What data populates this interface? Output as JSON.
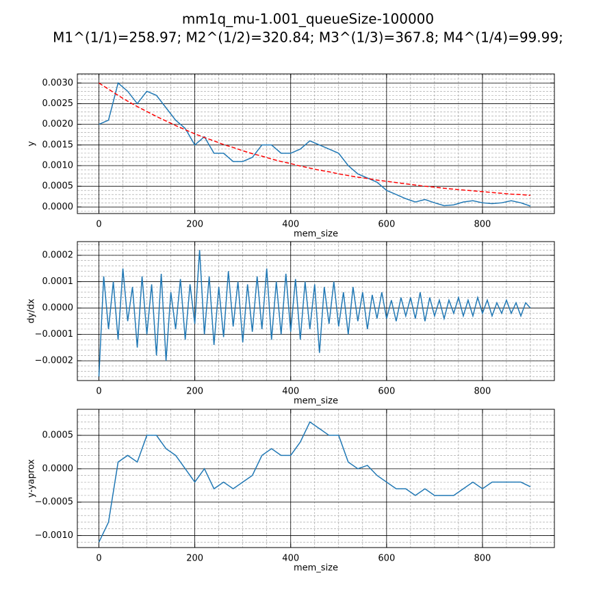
{
  "title": [
    "mm1q_mu-1.001_queueSize-100000",
    "M1^(1/1)=258.97; M2^(1/2)=320.84; M3^(1/3)=367.8; M4^(1/4)=99.99;"
  ],
  "chart_data": [
    {
      "type": "line",
      "xlabel": "mem_size",
      "ylabel": "y",
      "grid": true,
      "xlim": [
        -45,
        950
      ],
      "xticks": [
        0,
        200,
        400,
        600,
        800
      ],
      "ylim": [
        -0.00016,
        0.00322
      ],
      "yticks": [
        {
          "value": 0,
          "label": "0.0000"
        },
        {
          "value": 0.0005,
          "label": "0.0005"
        },
        {
          "value": 0.001,
          "label": "0.0010"
        },
        {
          "value": 0.0015,
          "label": "0.0015"
        },
        {
          "value": 0.002,
          "label": "0.0020"
        },
        {
          "value": 0.0025,
          "label": "0.0025"
        },
        {
          "value": 0.003,
          "label": "0.0030"
        }
      ],
      "x": [
        0,
        20,
        40,
        60,
        80,
        100,
        120,
        140,
        160,
        180,
        200,
        220,
        240,
        260,
        280,
        300,
        320,
        340,
        360,
        380,
        400,
        420,
        440,
        460,
        480,
        500,
        520,
        540,
        560,
        580,
        600,
        620,
        640,
        660,
        680,
        700,
        720,
        740,
        760,
        780,
        800,
        820,
        840,
        860,
        880,
        900
      ],
      "series": [
        {
          "color": "#1f77b4",
          "linestyle": "solid",
          "values": [
            0.002,
            0.0021,
            0.003,
            0.0028,
            0.0025,
            0.0028,
            0.0027,
            0.0024,
            0.0021,
            0.0019,
            0.0015,
            0.0017,
            0.0013,
            0.0013,
            0.0011,
            0.0011,
            0.0012,
            0.0015,
            0.0015,
            0.0013,
            0.0013,
            0.0014,
            0.0016,
            0.0015,
            0.0014,
            0.0013,
            0.001,
            0.0008,
            0.0007,
            0.0006,
            0.0004,
            0.0003,
            0.0002,
            0.00012,
            0.00018,
            0.0001,
            3e-05,
            5e-05,
            0.00012,
            0.00015,
            0.0001,
            8e-05,
            0.0001,
            0.00015,
            0.0001,
            2e-05
          ]
        },
        {
          "color": "#ff0000",
          "linestyle": "dashed",
          "values": [
            0.003,
            0.00285,
            0.0027,
            0.00256,
            0.00243,
            0.00231,
            0.00219,
            0.00208,
            0.00197,
            0.00187,
            0.00177,
            0.00168,
            0.0016,
            0.00151,
            0.00144,
            0.00136,
            0.00129,
            0.00123,
            0.00116,
            0.0011,
            0.00105,
            0.00099,
            0.00094,
            0.00089,
            0.00085,
            0.0008,
            0.00076,
            0.00072,
            0.00069,
            0.00065,
            0.00062,
            0.00059,
            0.00056,
            0.00053,
            0.0005,
            0.00048,
            0.00045,
            0.00043,
            0.00041,
            0.00039,
            0.00037,
            0.00035,
            0.00033,
            0.00031,
            0.0003,
            0.00028
          ]
        }
      ]
    },
    {
      "type": "line",
      "xlabel": "mem_size",
      "ylabel": "dy/dx",
      "grid": true,
      "xlim": [
        -45,
        950
      ],
      "xticks": [
        0,
        200,
        400,
        600,
        800
      ],
      "ylim": [
        -0.000275,
        0.000252
      ],
      "yticks": [
        {
          "value": -0.0002,
          "label": "−0.0002"
        },
        {
          "value": -0.0001,
          "label": "−0.0001"
        },
        {
          "value": 0,
          "label": "0.0000"
        },
        {
          "value": 0.0001,
          "label": "0.0001"
        },
        {
          "value": 0.0002,
          "label": "0.0002"
        }
      ],
      "x": [
        0,
        10,
        20,
        30,
        40,
        50,
        60,
        70,
        80,
        90,
        100,
        110,
        120,
        130,
        140,
        150,
        160,
        170,
        180,
        190,
        200,
        210,
        220,
        230,
        240,
        250,
        260,
        270,
        280,
        290,
        300,
        310,
        320,
        330,
        340,
        350,
        360,
        370,
        380,
        390,
        400,
        410,
        420,
        430,
        440,
        450,
        460,
        470,
        480,
        490,
        500,
        510,
        520,
        530,
        540,
        550,
        560,
        570,
        580,
        590,
        600,
        610,
        620,
        630,
        640,
        650,
        660,
        670,
        680,
        690,
        700,
        710,
        720,
        730,
        740,
        750,
        760,
        770,
        780,
        790,
        800,
        810,
        820,
        830,
        840,
        850,
        860,
        870,
        880,
        890,
        900
      ],
      "series": [
        {
          "color": "#1f77b4",
          "linestyle": "solid",
          "values": [
            -0.00026,
            0.00012,
            -8e-05,
            0.0001,
            -0.00012,
            0.00015,
            -5e-05,
            8e-05,
            -0.00015,
            0.00012,
            -0.0001,
            9e-05,
            -0.00018,
            0.00013,
            -0.0002,
            6e-05,
            -8e-05,
            0.00011,
            -0.00012,
            9e-05,
            -6e-05,
            0.00022,
            -0.0001,
            0.00012,
            -0.00014,
            8e-05,
            -0.00011,
            0.00014,
            -7e-05,
            0.0001,
            -0.00013,
            9e-05,
            -9e-05,
            0.00012,
            -8e-05,
            0.00015,
            -0.00012,
            0.0001,
            -0.0001,
            0.00013,
            -9e-05,
            0.00011,
            -0.00012,
            0.0001,
            -8e-05,
            9e-05,
            -0.00017,
            8e-05,
            -6e-05,
            0.0001,
            -7e-05,
            6e-05,
            -0.0001,
            8e-05,
            -5e-05,
            6e-05,
            -8e-05,
            5e-05,
            -4e-05,
            6e-05,
            -4e-05,
            3e-05,
            -5e-05,
            4e-05,
            -3e-05,
            4e-05,
            -4e-05,
            6e-05,
            -5e-05,
            4e-05,
            -3e-05,
            3e-05,
            -4e-05,
            3e-05,
            -2e-05,
            4e-05,
            -3e-05,
            3e-05,
            -3e-05,
            4e-05,
            -2e-05,
            3e-05,
            -3e-05,
            2e-05,
            -2e-05,
            3e-05,
            -2e-05,
            2e-05,
            -3e-05,
            2e-05,
            0
          ]
        }
      ]
    },
    {
      "type": "line",
      "xlabel": "mem_size",
      "ylabel": "y-yaprox",
      "grid": true,
      "xlim": [
        -45,
        950
      ],
      "xticks": [
        0,
        200,
        400,
        600,
        800
      ],
      "ylim": [
        -0.00118,
        0.00089
      ],
      "yticks": [
        {
          "value": -0.001,
          "label": "−0.0010"
        },
        {
          "value": -0.0005,
          "label": "−0.0005"
        },
        {
          "value": 0,
          "label": "0.0000"
        },
        {
          "value": 0.0005,
          "label": "0.0005"
        }
      ],
      "x": [
        0,
        20,
        40,
        60,
        80,
        100,
        120,
        140,
        160,
        180,
        200,
        220,
        240,
        260,
        280,
        300,
        320,
        340,
        360,
        380,
        400,
        420,
        440,
        460,
        480,
        500,
        520,
        540,
        560,
        580,
        600,
        620,
        640,
        660,
        680,
        700,
        720,
        740,
        760,
        780,
        800,
        820,
        840,
        860,
        880,
        900
      ],
      "series": [
        {
          "color": "#1f77b4",
          "linestyle": "solid",
          "values": [
            -0.0011,
            -0.0008,
            0.0001,
            0.0002,
            0.0001,
            0.0005,
            0.0005,
            0.0003,
            0.0002,
            0,
            -0.0002,
            0,
            -0.0003,
            -0.0002,
            -0.0003,
            -0.0002,
            -0.0001,
            0.0002,
            0.0003,
            0.0002,
            0.0002,
            0.0004,
            0.0007,
            0.0006,
            0.0005,
            0.0005,
            0.0001,
            0,
            5e-05,
            -0.0001,
            -0.0002,
            -0.0003,
            -0.0003,
            -0.0004,
            -0.0003,
            -0.0004,
            -0.0004,
            -0.0004,
            -0.0003,
            -0.0002,
            -0.0003,
            -0.0002,
            -0.0002,
            -0.0002,
            -0.0002,
            -0.00027
          ]
        }
      ]
    }
  ]
}
